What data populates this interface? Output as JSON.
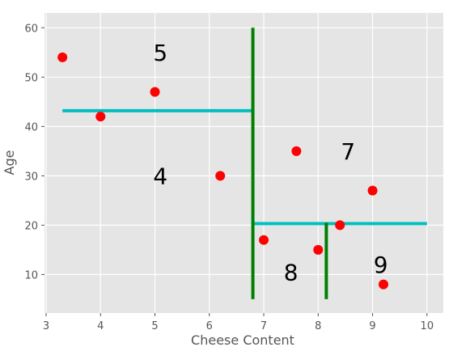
{
  "chart_data": {
    "type": "scatter",
    "xlabel": "Cheese Content",
    "ylabel": "Age",
    "xlim": [
      2.97,
      10.3
    ],
    "ylim": [
      2.2,
      63
    ],
    "xticks": [
      3,
      4,
      5,
      6,
      7,
      8,
      9,
      10
    ],
    "yticks": [
      10,
      20,
      30,
      40,
      50,
      60
    ],
    "grid": true,
    "points": [
      {
        "x": 3.3,
        "y": 54
      },
      {
        "x": 4.0,
        "y": 42
      },
      {
        "x": 5.0,
        "y": 47
      },
      {
        "x": 6.2,
        "y": 30
      },
      {
        "x": 7.0,
        "y": 17
      },
      {
        "x": 7.6,
        "y": 35
      },
      {
        "x": 8.0,
        "y": 15
      },
      {
        "x": 8.4,
        "y": 20
      },
      {
        "x": 9.0,
        "y": 27
      },
      {
        "x": 9.2,
        "y": 8
      }
    ],
    "vertical_splits": [
      {
        "x": 6.8,
        "y_from": 5,
        "y_to": 60
      },
      {
        "x": 8.15,
        "y_from": 5,
        "y_to": 20.5
      }
    ],
    "horizontal_splits": [
      {
        "y": 43.2,
        "x_from": 3.3,
        "x_to": 6.8
      },
      {
        "y": 20.3,
        "x_from": 6.8,
        "x_to": 10.0
      }
    ],
    "region_labels": [
      {
        "text": "5",
        "x": 5.1,
        "y": 55
      },
      {
        "text": "4",
        "x": 5.1,
        "y": 30
      },
      {
        "text": "7",
        "x": 8.55,
        "y": 35
      },
      {
        "text": "8",
        "x": 7.5,
        "y": 10.5
      },
      {
        "text": "9",
        "x": 9.15,
        "y": 12
      },
      {
        "text": "",
        "x": 0,
        "y": 0
      }
    ],
    "colors": {
      "background": "#e5e5e5",
      "grid": "#ffffff",
      "points": "#ff0000",
      "vertical_split": "#008000",
      "horizontal_split": "#00bfbf"
    }
  }
}
